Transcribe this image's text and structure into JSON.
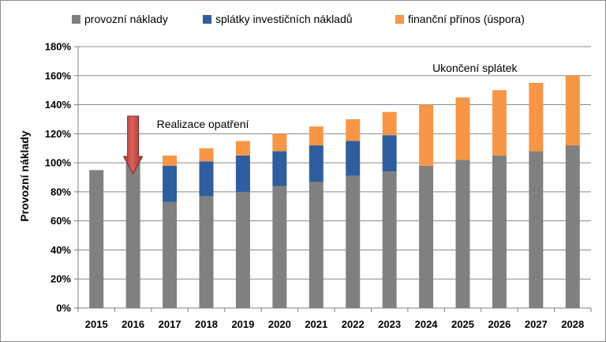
{
  "chart_data": {
    "type": "bar",
    "stacked": true,
    "categories": [
      "2015",
      "2016",
      "2017",
      "2018",
      "2019",
      "2020",
      "2021",
      "2022",
      "2023",
      "2024",
      "2025",
      "2026",
      "2027",
      "2028"
    ],
    "series": [
      {
        "name": "provozní náklady",
        "color": "#808080",
        "values": [
          95,
          100,
          73,
          77,
          80,
          84,
          87,
          91,
          94,
          98,
          102,
          105,
          108,
          112
        ]
      },
      {
        "name": "splátky investičních nákladů",
        "color": "#2f5e9e",
        "values": [
          0,
          0,
          25,
          24,
          25,
          24,
          25,
          24,
          25,
          0,
          0,
          0,
          0,
          0
        ]
      },
      {
        "name": "finanční přínos (úspora)",
        "color": "#f79646",
        "values": [
          0,
          0,
          7,
          9,
          10,
          12,
          13,
          15,
          16,
          42,
          43,
          45,
          47,
          48
        ]
      }
    ],
    "ylabel": "Provozní náklady",
    "xlabel": "",
    "ylim": [
      0,
      180
    ],
    "yticks": [
      0,
      20,
      40,
      60,
      80,
      100,
      120,
      140,
      160,
      180
    ],
    "ytick_suffix": "%",
    "grid": true,
    "legend_position": "top",
    "annotations": [
      {
        "text": "Realizace opatření",
        "category": "2016",
        "kind": "arrow"
      },
      {
        "text": "Ukončení splátek",
        "category": "2024"
      }
    ]
  }
}
